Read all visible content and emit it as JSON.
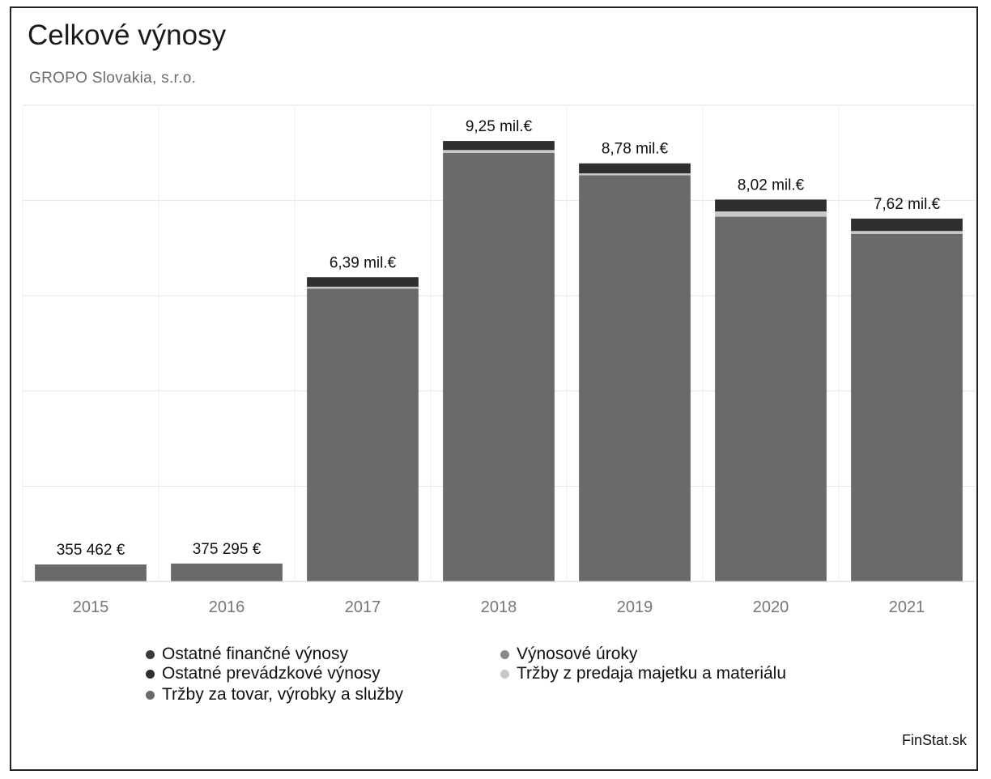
{
  "chart_data": {
    "type": "bar",
    "stacked": true,
    "title": "Celkové výnosy",
    "subtitle": "GROPO Slovakia, s.r.o.",
    "categories": [
      "2015",
      "2016",
      "2017",
      "2018",
      "2019",
      "2020",
      "2021"
    ],
    "totals": [
      355462,
      375295,
      6390000,
      9250000,
      8780000,
      8020000,
      7620000
    ],
    "total_labels": [
      "355 462 €",
      "375 295 €",
      "6,39 mil.€",
      "9,25 mil.€",
      "8,78 mil.€",
      "8,02 mil.€",
      "7,62 mil.€"
    ],
    "series": [
      {
        "name": "Tržby za tovar, výrobky a služby",
        "color": "#6a6a6a",
        "values": [
          355462,
          375295,
          6150000,
          9000000,
          8530000,
          7660000,
          7300000
        ]
      },
      {
        "name": "Tržby z predaja majetku a materiálu",
        "color": "#c8c8c8",
        "values": [
          0,
          0,
          40000,
          60000,
          40000,
          110000,
          60000
        ]
      },
      {
        "name": "Výnosové úroky",
        "color": "#8a8a8a",
        "values": [
          0,
          0,
          0,
          0,
          0,
          0,
          0
        ]
      },
      {
        "name": "Ostatné prevádzkové výnosy",
        "color": "#2e2e2e",
        "values": [
          0,
          0,
          200000,
          190000,
          210000,
          250000,
          260000
        ]
      },
      {
        "name": "Ostatné finančné výnosy",
        "color": "#3a3a3a",
        "values": [
          0,
          0,
          0,
          0,
          0,
          0,
          0
        ]
      }
    ],
    "ylim": [
      0,
      10000000
    ],
    "grid": true,
    "legend_position": "bottom"
  },
  "legend_items": [
    {
      "label": "Ostatné finančné výnosy",
      "color": "#3a3a3a"
    },
    {
      "label": "Ostatné prevádzkové výnosy",
      "color": "#2e2e2e"
    },
    {
      "label": "Tržby za tovar, výrobky a služby",
      "color": "#6a6a6a"
    },
    {
      "label": "Výnosové úroky",
      "color": "#8a8a8a"
    },
    {
      "label": "Tržby z predaja majetku a materiálu",
      "color": "#c8c8c8"
    }
  ],
  "source": "FinStat.sk"
}
